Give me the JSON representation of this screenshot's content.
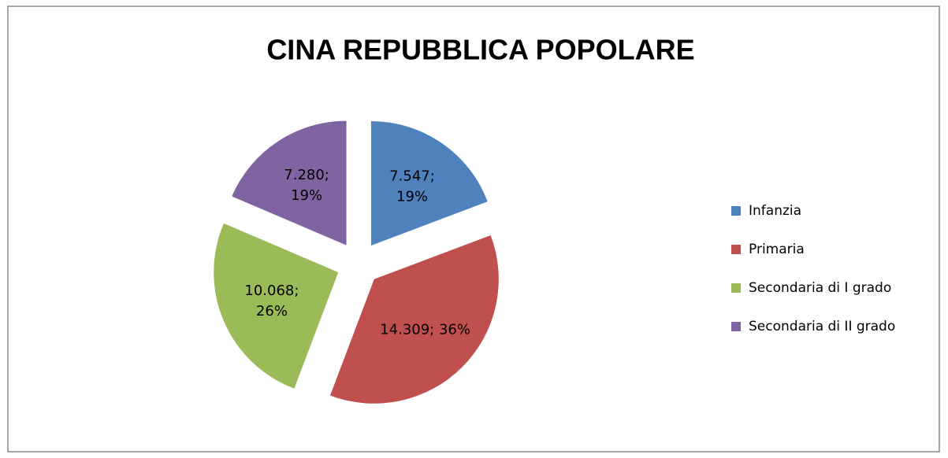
{
  "chart_data": {
    "type": "pie",
    "title": "CINA REPUBBLICA POPOLARE",
    "categories": [
      "Infanzia",
      "Primaria",
      "Secondaria di I grado",
      "Secondaria di II grado"
    ],
    "values": [
      7547,
      14309,
      10068,
      7280
    ],
    "value_labels": [
      "7.547; 19%",
      "14.309; 36%",
      "10.068; 26%",
      "7.280; 19%"
    ],
    "colors": [
      "#4f81bd",
      "#c0504d",
      "#9bbb59",
      "#8064a2"
    ],
    "legend": "right"
  }
}
